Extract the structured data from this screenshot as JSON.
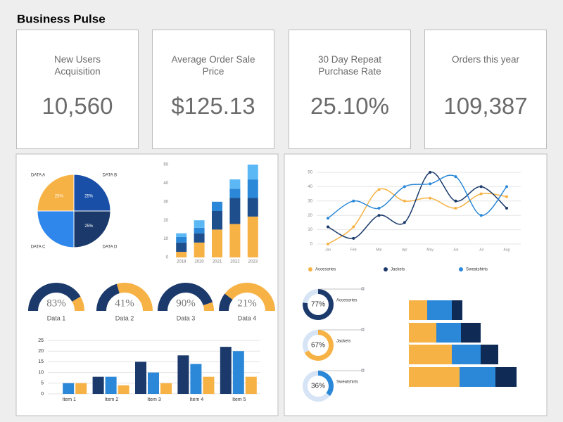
{
  "header": {
    "title": "Business Pulse"
  },
  "kpis": [
    {
      "label": "New Users Acquisition",
      "value": "10,560"
    },
    {
      "label": "Average Order Sale Price",
      "value": "$125.13"
    },
    {
      "label": "30 Day Repeat Purchase Rate",
      "value": "25.10%"
    },
    {
      "label": "Orders this year",
      "value": "109,387"
    }
  ],
  "chart_data": [
    {
      "type": "pie",
      "categories": [
        "DATA B",
        "DATA D",
        "DATA C",
        "DATA A"
      ],
      "values": [
        25,
        25,
        25,
        25
      ],
      "value_labels": [
        "25%",
        "25%",
        null,
        "25%"
      ],
      "colors": [
        "#1a4fa8",
        "#1b3a6b",
        "#2f86eb",
        "#f7b245"
      ]
    },
    {
      "type": "stacked_bar",
      "categories": [
        "2019",
        "2020",
        "2021",
        "2022",
        "2023"
      ],
      "series": [
        {
          "color": "#f7b245",
          "values": [
            3,
            8,
            15,
            18,
            22
          ]
        },
        {
          "color": "#1f4e8c",
          "values": [
            5,
            5,
            10,
            14,
            10
          ]
        },
        {
          "color": "#2b88d8",
          "values": [
            3,
            3,
            5,
            5,
            10
          ]
        },
        {
          "color": "#5bb8f5",
          "values": [
            2,
            4,
            0,
            5,
            8
          ]
        }
      ],
      "ylim": [
        0,
        50
      ],
      "yticks": [
        0,
        10,
        20,
        30,
        40,
        50
      ]
    },
    {
      "type": "gauge",
      "categories": [
        "Data 1",
        "Data 2",
        "Data 3",
        "Data 4"
      ],
      "values": [
        83,
        41,
        90,
        21
      ],
      "value_labels": [
        "83%",
        "41%",
        "90%",
        "21%"
      ],
      "ylim": [
        0,
        100
      ],
      "color": "#1b3a6b",
      "track_color": "#f7b245"
    },
    {
      "type": "bar",
      "categories": [
        "Item 1",
        "Item 2",
        "Item 3",
        "Item 4",
        "Item 5"
      ],
      "series": [
        {
          "color": "#1b3a6b",
          "values": [
            0,
            8,
            15,
            18,
            22
          ]
        },
        {
          "color": "#2b88d8",
          "values": [
            5,
            8,
            10,
            14,
            20
          ]
        },
        {
          "color": "#f7b245",
          "values": [
            5,
            4,
            5,
            8,
            8
          ]
        }
      ],
      "ylim": [
        0,
        25
      ],
      "yticks": [
        0,
        5,
        10,
        15,
        20,
        25
      ],
      "grid": true
    },
    {
      "type": "line",
      "categories": [
        "Jan",
        "Feb",
        "Mar",
        "Apr",
        "May",
        "Jun",
        "Jul",
        "Aug"
      ],
      "series": [
        {
          "name": "Accesories",
          "color": "#f7b245",
          "values": [
            0,
            12,
            38,
            30,
            32,
            25,
            35,
            33
          ]
        },
        {
          "name": "Jackets",
          "color": "#1b3a6b",
          "values": [
            12,
            4,
            20,
            15,
            50,
            30,
            40,
            25
          ]
        },
        {
          "name": "Sweatshirts",
          "color": "#2b88d8",
          "values": [
            18,
            30,
            25,
            40,
            42,
            47,
            20,
            40
          ]
        }
      ],
      "ylim": [
        0,
        50
      ],
      "yticks": [
        0,
        10,
        20,
        30,
        40,
        50
      ],
      "grid": true,
      "legend": "bottom"
    },
    {
      "type": "donut",
      "categories": [
        "Accesories",
        "Jackets",
        "Sweatshirts"
      ],
      "values": [
        77,
        67,
        36
      ],
      "value_labels": [
        "77%",
        "67%",
        "36%"
      ],
      "ylim": [
        0,
        100
      ],
      "colors": [
        "#1b3a6b",
        "#f7b245",
        "#2b88d8"
      ],
      "track_color": "#d6e4f5"
    },
    {
      "type": "stacked_hbar",
      "series": [
        {
          "color": "#f7b245",
          "values": [
            26,
            39,
            61,
            72
          ]
        },
        {
          "color": "#2b88d8",
          "values": [
            35,
            35,
            41,
            51
          ]
        },
        {
          "color": "#0f2a55",
          "values": [
            15,
            28,
            25,
            30
          ]
        }
      ],
      "xlim": [
        0,
        160
      ]
    }
  ]
}
